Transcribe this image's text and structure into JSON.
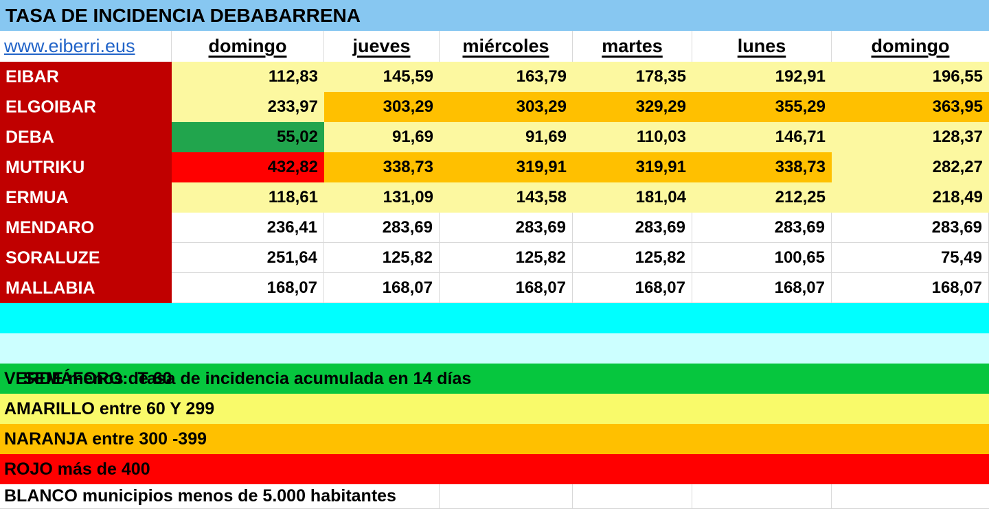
{
  "title": "TASA DE INCIDENCIA DEBABARRENA",
  "link": "www.eiberri.eus",
  "columns": [
    "domingo",
    "jueves",
    "miércoles",
    "martes",
    "lunes",
    "domingo"
  ],
  "rows": [
    {
      "name": "EIBAR",
      "values": [
        "112,83",
        "145,59",
        "163,79",
        "178,35",
        "192,91",
        "196,55"
      ],
      "colors": [
        "yellow",
        "yellow",
        "yellow",
        "yellow",
        "yellow",
        "yellow"
      ]
    },
    {
      "name": "ELGOIBAR",
      "values": [
        "233,97",
        "303,29",
        "303,29",
        "329,29",
        "355,29",
        "363,95"
      ],
      "colors": [
        "yellow",
        "orange",
        "orange",
        "orange",
        "orange",
        "orange"
      ]
    },
    {
      "name": "DEBA",
      "values": [
        "55,02",
        "91,69",
        "91,69",
        "110,03",
        "146,71",
        "128,37"
      ],
      "colors": [
        "green",
        "yellow",
        "yellow",
        "yellow",
        "yellow",
        "yellow"
      ]
    },
    {
      "name": "MUTRIKU",
      "values": [
        "432,82",
        "338,73",
        "319,91",
        "319,91",
        "338,73",
        "282,27"
      ],
      "colors": [
        "red",
        "orange",
        "orange",
        "orange",
        "orange",
        "yellow"
      ]
    },
    {
      "name": "ERMUA",
      "values": [
        "118,61",
        "131,09",
        "143,58",
        "181,04",
        "212,25",
        "218,49"
      ],
      "colors": [
        "yellow",
        "yellow",
        "yellow",
        "yellow",
        "yellow",
        "yellow"
      ]
    },
    {
      "name": "MENDARO",
      "values": [
        "236,41",
        "283,69",
        "283,69",
        "283,69",
        "283,69",
        "283,69"
      ],
      "colors": [
        "white",
        "white",
        "white",
        "white",
        "white",
        "white"
      ]
    },
    {
      "name": "SORALUZE",
      "values": [
        "251,64",
        "125,82",
        "125,82",
        "125,82",
        "100,65",
        "75,49"
      ],
      "colors": [
        "white",
        "white",
        "white",
        "white",
        "white",
        "white"
      ]
    },
    {
      "name": "MALLABIA",
      "values": [
        "168,07",
        "168,07",
        "168,07",
        "168,07",
        "168,07",
        "168,07"
      ],
      "colors": [
        "white",
        "white",
        "white",
        "white",
        "white",
        "white"
      ]
    }
  ],
  "legend": {
    "heading": "SEMÁFORO:  Tasa de incidencia acumulada en 14 días",
    "items": [
      {
        "label": "VERDE menos de 60",
        "color_key": "legend_green"
      },
      {
        "label": "AMARILLO entre 60 Y 299",
        "color_key": "legend_yellow"
      },
      {
        "label": "NARANJA entre 300 -399",
        "color_key": "orange"
      },
      {
        "label": "ROJO más de 400",
        "color_key": "red"
      },
      {
        "label": "BLANCO municipios menos de 5.000 habitantes",
        "color_key": "white"
      }
    ]
  },
  "colors": {
    "title_bg": "#87C7F1",
    "header_red": "#C00000",
    "yellow_cell": "#FCF8A0",
    "orange": "#FFC000",
    "red": "#FF0000",
    "green_cell": "#21A54D",
    "legend_green": "#06C63E",
    "legend_yellow": "#F9FA6A",
    "cyan_band": "#00FFFF",
    "legend_heading_bg": "#CCFFFF",
    "link_blue": "#2264C8",
    "gridline": "#D9D9D9"
  }
}
